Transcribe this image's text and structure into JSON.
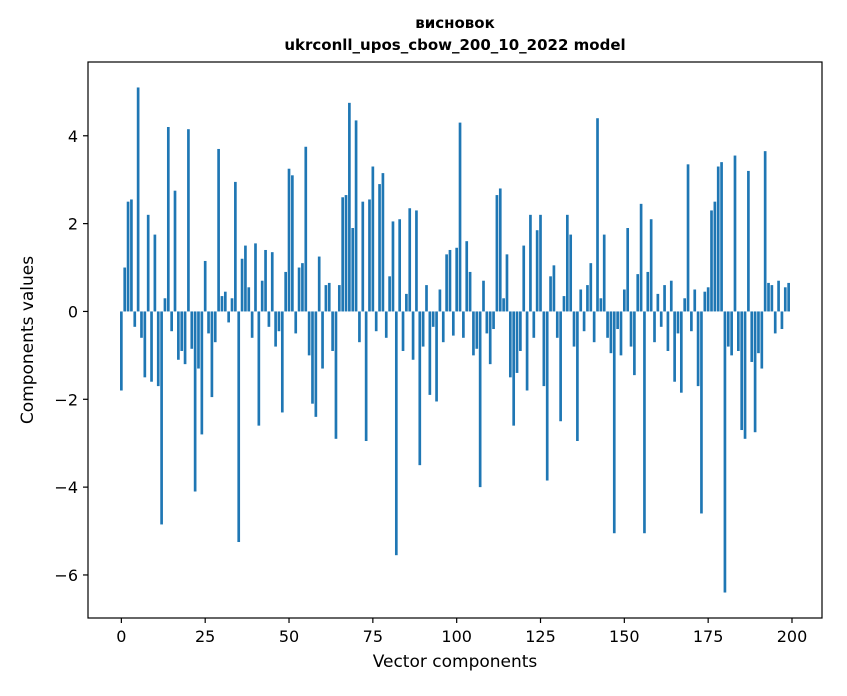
{
  "chart_data": {
    "type": "bar",
    "title": "висновок",
    "subtitle": "ukrconll_upos_cbow_200_10_2022 model",
    "xlabel": "Vector components",
    "ylabel": "Components values",
    "bar_color": "#1f77b4",
    "bar_width": 0.8,
    "xlim": [
      -9.95,
      208.95
    ],
    "ylim": [
      -6.98,
      5.68
    ],
    "grid": false,
    "legend": "none",
    "xticks": [
      {
        "v": 0,
        "label": "0"
      },
      {
        "v": 25,
        "label": "25"
      },
      {
        "v": 50,
        "label": "50"
      },
      {
        "v": 75,
        "label": "75"
      },
      {
        "v": 100,
        "label": "100"
      },
      {
        "v": 125,
        "label": "125"
      },
      {
        "v": 150,
        "label": "150"
      },
      {
        "v": 175,
        "label": "175"
      },
      {
        "v": 200,
        "label": "200"
      }
    ],
    "yticks": [
      {
        "v": -6,
        "label": "−6"
      },
      {
        "v": -4,
        "label": "−4"
      },
      {
        "v": -2,
        "label": "−2"
      },
      {
        "v": 0,
        "label": "0"
      },
      {
        "v": 2,
        "label": "2"
      },
      {
        "v": 4,
        "label": "4"
      }
    ],
    "x_is_index": true,
    "values": [
      -1.8,
      1.0,
      2.5,
      2.55,
      -0.35,
      5.1,
      -0.6,
      -1.5,
      2.2,
      -1.6,
      1.75,
      -1.7,
      -4.85,
      0.3,
      4.2,
      -0.45,
      2.75,
      -1.1,
      -0.9,
      -1.2,
      4.15,
      -0.85,
      -4.1,
      -1.3,
      -2.8,
      1.15,
      -0.5,
      -1.95,
      -0.7,
      3.7,
      0.35,
      0.45,
      -0.25,
      0.3,
      2.95,
      -5.25,
      1.2,
      1.5,
      0.55,
      -0.6,
      1.55,
      -2.6,
      0.7,
      1.4,
      -0.35,
      1.35,
      -0.8,
      -0.45,
      -2.3,
      0.9,
      3.25,
      3.1,
      -0.5,
      1.0,
      1.1,
      3.75,
      -1.0,
      -2.1,
      -2.4,
      1.25,
      -1.3,
      0.6,
      0.65,
      -0.9,
      -2.9,
      0.6,
      2.6,
      2.65,
      4.75,
      1.9,
      4.35,
      -0.7,
      2.5,
      -2.95,
      2.55,
      3.3,
      -0.45,
      2.9,
      3.15,
      -0.6,
      0.8,
      2.05,
      -5.55,
      2.1,
      -0.9,
      0.4,
      2.35,
      -1.1,
      2.3,
      -3.5,
      -0.8,
      0.6,
      -1.9,
      -0.35,
      -2.05,
      0.5,
      -0.7,
      1.3,
      1.4,
      -0.55,
      1.45,
      4.3,
      -0.6,
      1.6,
      0.9,
      -1.0,
      -0.85,
      -4.0,
      0.7,
      -0.5,
      -1.2,
      -0.4,
      2.65,
      2.8,
      0.3,
      1.3,
      -1.5,
      -2.6,
      -1.4,
      -0.9,
      1.5,
      -1.8,
      2.2,
      -0.6,
      1.85,
      2.2,
      -1.7,
      -3.85,
      0.8,
      1.05,
      -0.6,
      -2.5,
      0.35,
      2.2,
      1.75,
      -0.8,
      -2.95,
      0.5,
      -0.45,
      0.6,
      1.1,
      -0.7,
      4.4,
      0.3,
      1.75,
      -0.6,
      -0.95,
      -5.05,
      -0.4,
      -1.0,
      0.5,
      1.9,
      -0.8,
      -1.45,
      0.85,
      2.45,
      -5.05,
      0.9,
      2.1,
      -0.7,
      0.4,
      -0.35,
      0.6,
      -0.9,
      0.7,
      -1.6,
      -0.5,
      -1.85,
      0.3,
      3.35,
      -0.45,
      0.5,
      -1.7,
      -4.6,
      0.45,
      0.55,
      2.3,
      2.5,
      3.3,
      3.4,
      -6.4,
      -0.8,
      -1.0,
      3.55,
      -0.9,
      -2.7,
      -2.9,
      3.2,
      -1.15,
      -2.75,
      -0.95,
      -1.3,
      3.65,
      0.65,
      0.6,
      -0.5,
      0.7,
      -0.4,
      0.55,
      0.65
    ]
  }
}
